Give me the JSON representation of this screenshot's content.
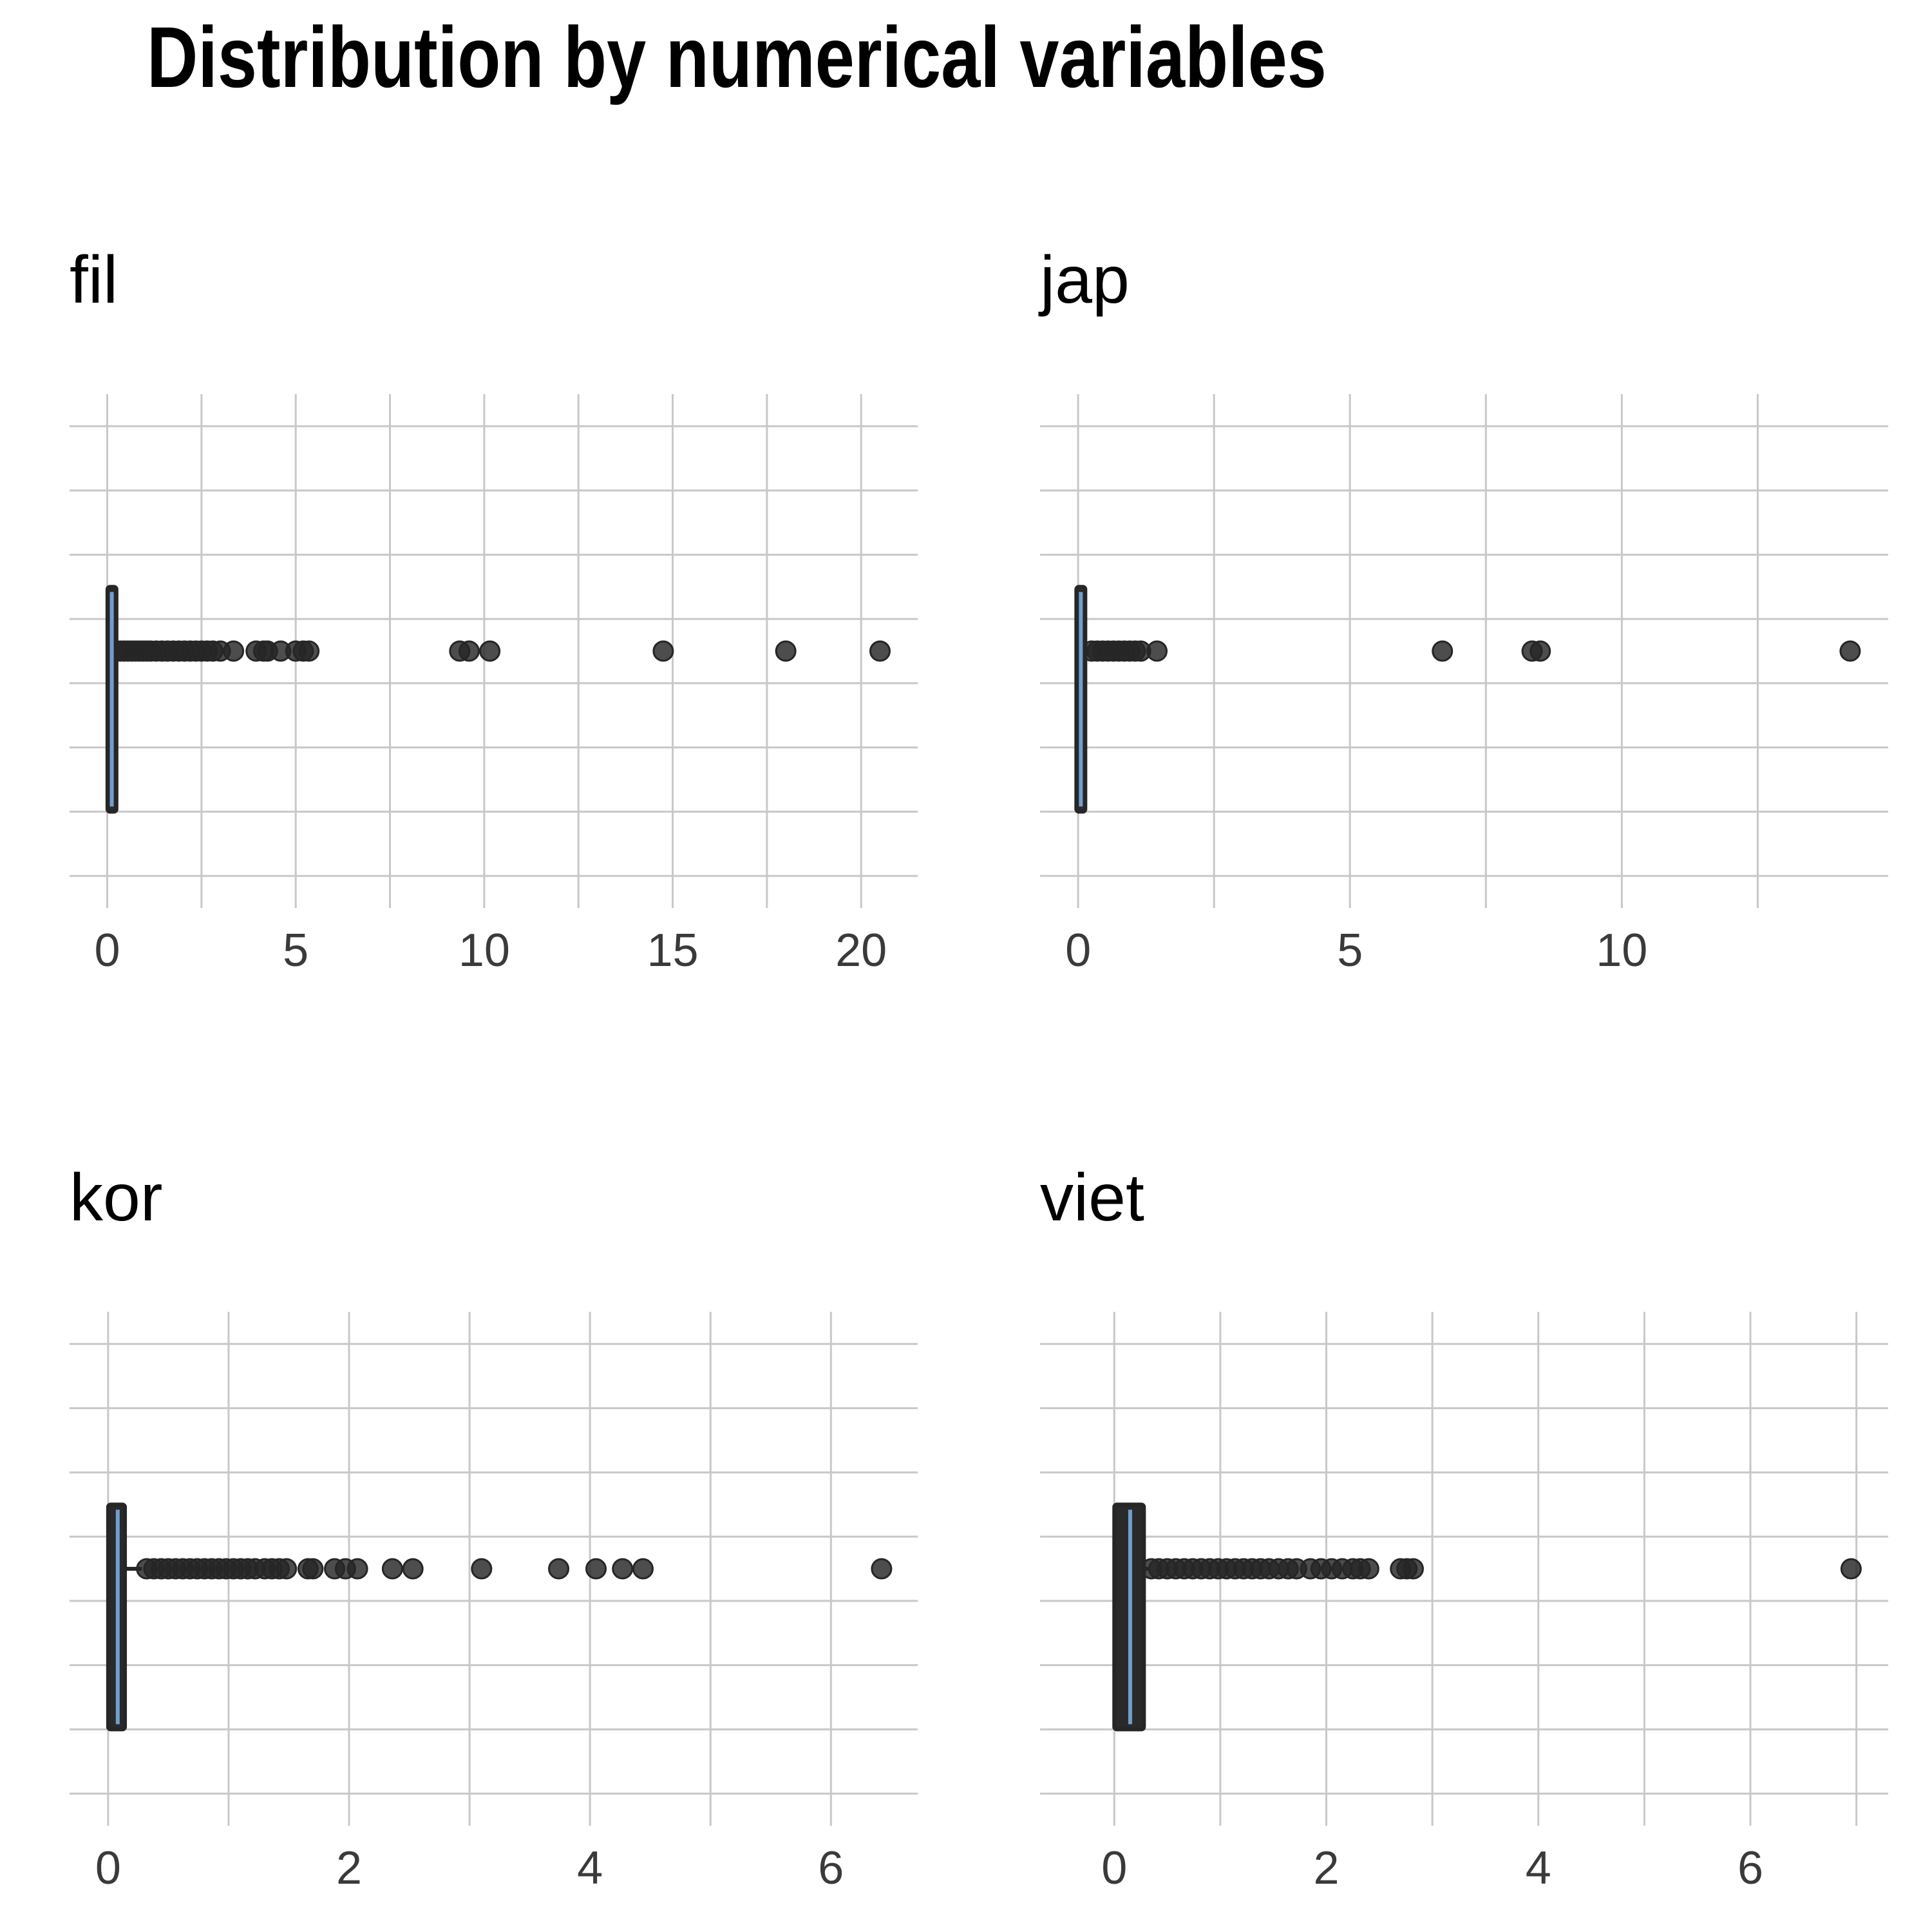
{
  "title": "Distribution by numerical variables",
  "colors": {
    "box_fill": "#2a2a2a",
    "median_line": "#6f9fcf",
    "grid": "#c8c8c8",
    "points": "#262626"
  },
  "chart_data": [
    {
      "type": "boxplot",
      "title": "fil",
      "xlim": [
        -1,
        21.5
      ],
      "xticks": [
        0,
        5,
        10,
        15,
        20
      ],
      "grid": true,
      "box": {
        "q1": 0.05,
        "median": 0.12,
        "q3": 0.2,
        "whisker_low": 0.0,
        "whisker_high": 0.25
      },
      "outliers": [
        0.35,
        0.45,
        0.55,
        0.65,
        0.75,
        0.85,
        0.95,
        1.05,
        1.15,
        1.3,
        1.45,
        1.6,
        1.75,
        1.9,
        2.05,
        2.2,
        2.35,
        2.5,
        2.65,
        2.8,
        3.0,
        3.35,
        3.95,
        4.15,
        4.25,
        4.6,
        5.0,
        5.2,
        5.35,
        9.35,
        9.6,
        10.15,
        14.75,
        18.0,
        20.5
      ]
    },
    {
      "type": "boxplot",
      "title": "jap",
      "xlim": [
        -0.7,
        14.9
      ],
      "xticks": [
        0,
        5,
        10
      ],
      "grid": true,
      "box": {
        "q1": 0.0,
        "median": 0.05,
        "q3": 0.1,
        "whisker_low": 0.0,
        "whisker_high": 0.2
      },
      "outliers": [
        0.25,
        0.35,
        0.45,
        0.55,
        0.65,
        0.75,
        0.85,
        0.95,
        1.05,
        1.15,
        1.45,
        6.7,
        8.35,
        8.5,
        14.2
      ]
    },
    {
      "type": "boxplot",
      "title": "kor",
      "xlim": [
        -0.32,
        6.72
      ],
      "xticks": [
        0,
        2,
        4,
        6
      ],
      "grid": true,
      "box": {
        "q1": 0.0,
        "median": 0.08,
        "q3": 0.14,
        "whisker_low": 0.0,
        "whisker_high": 0.28
      },
      "outliers": [
        0.32,
        0.38,
        0.44,
        0.5,
        0.56,
        0.62,
        0.68,
        0.74,
        0.8,
        0.86,
        0.92,
        0.98,
        1.04,
        1.1,
        1.16,
        1.22,
        1.3,
        1.36,
        1.42,
        1.48,
        1.66,
        1.7,
        1.88,
        1.97,
        2.07,
        2.36,
        2.53,
        3.1,
        3.74,
        4.05,
        4.27,
        4.44,
        6.42
      ]
    },
    {
      "type": "boxplot",
      "title": "viet",
      "xlim": [
        -0.7,
        7.3
      ],
      "xticks": [
        0,
        2,
        4,
        6
      ],
      "grid": true,
      "box": {
        "q1": 0.0,
        "median": 0.15,
        "q3": 0.28,
        "whisker_low": 0.0,
        "whisker_high": 0.33
      },
      "outliers": [
        0.35,
        0.42,
        0.5,
        0.58,
        0.66,
        0.74,
        0.82,
        0.9,
        0.98,
        1.06,
        1.14,
        1.22,
        1.3,
        1.38,
        1.46,
        1.55,
        1.64,
        1.72,
        1.85,
        1.95,
        2.05,
        2.15,
        2.25,
        2.32,
        2.4,
        2.7,
        2.76,
        2.82,
        6.95
      ]
    }
  ]
}
